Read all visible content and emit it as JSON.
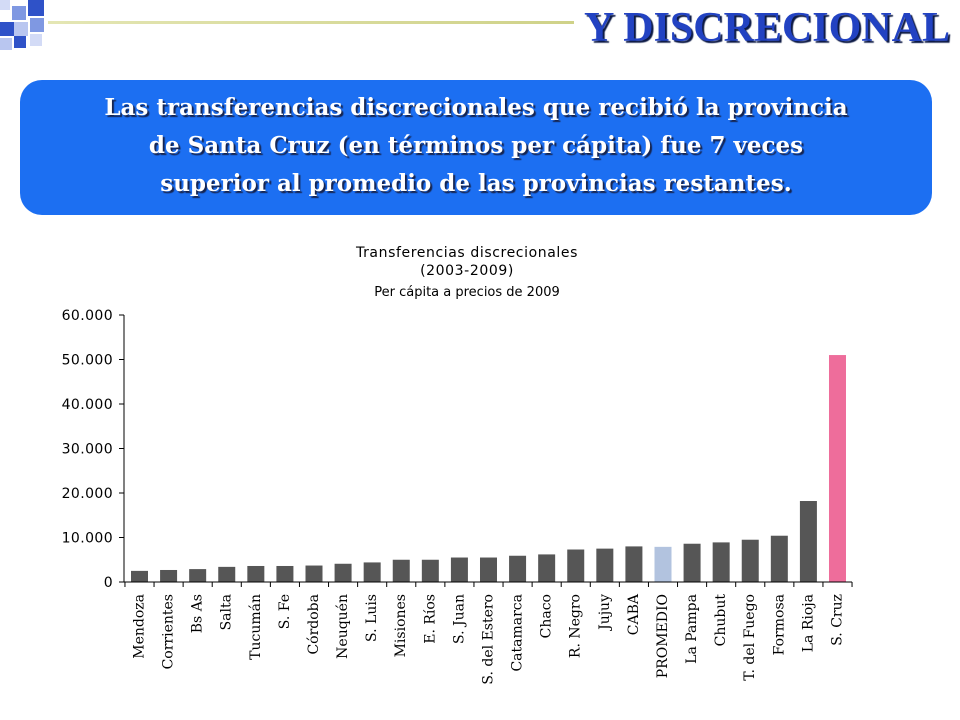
{
  "slide": {
    "title": "Y DISCRECIONAL",
    "callout": {
      "lines": [
        "Las transferencias discrecionales que recibió la provincia",
        "de Santa Cruz (en términos per cápita) fue 7 veces",
        "superior al promedio de las provincias restantes."
      ]
    },
    "colors": {
      "title": "#2242c2",
      "callout_bg": "#1c6ff2"
    }
  },
  "chart_data": {
    "type": "bar",
    "title": "Transferencias discrecionales",
    "subtitle": "(2003-2009)",
    "note": "Per cápita a precios de 2009",
    "categories": [
      "Mendoza",
      "Corrientes",
      "Bs As",
      "Salta",
      "Tucumán",
      "S. Fe",
      "Córdoba",
      "Neuquén",
      "S. Luis",
      "Misiones",
      "E. Ríos",
      "S. Juan",
      "S. del Estero",
      "Catamarca",
      "Chaco",
      "R. Negro",
      "Jujuy",
      "CABA",
      "PROMEDIO",
      "La Pampa",
      "Chubut",
      "T. del Fuego",
      "Formosa",
      "La Rioja",
      "S. Cruz"
    ],
    "values": [
      2500,
      2700,
      2900,
      3400,
      3600,
      3600,
      3700,
      4100,
      4400,
      5000,
      5000,
      5500,
      5500,
      5900,
      6200,
      7300,
      7500,
      8000,
      7900,
      8600,
      8900,
      9500,
      10400,
      18200,
      51000
    ],
    "ylim": [
      0,
      60000
    ],
    "yticks": [
      0,
      10000,
      20000,
      30000,
      40000,
      50000,
      60000
    ],
    "ytick_labels": [
      "0",
      "10.000",
      "20.000",
      "30.000",
      "40.000",
      "50.000",
      "60.000"
    ],
    "grid": false,
    "colors": {
      "default": "#565656",
      "highlights": {
        "PROMEDIO": "#b2c3df",
        "S. Cruz": "#ee6d9b"
      }
    }
  }
}
